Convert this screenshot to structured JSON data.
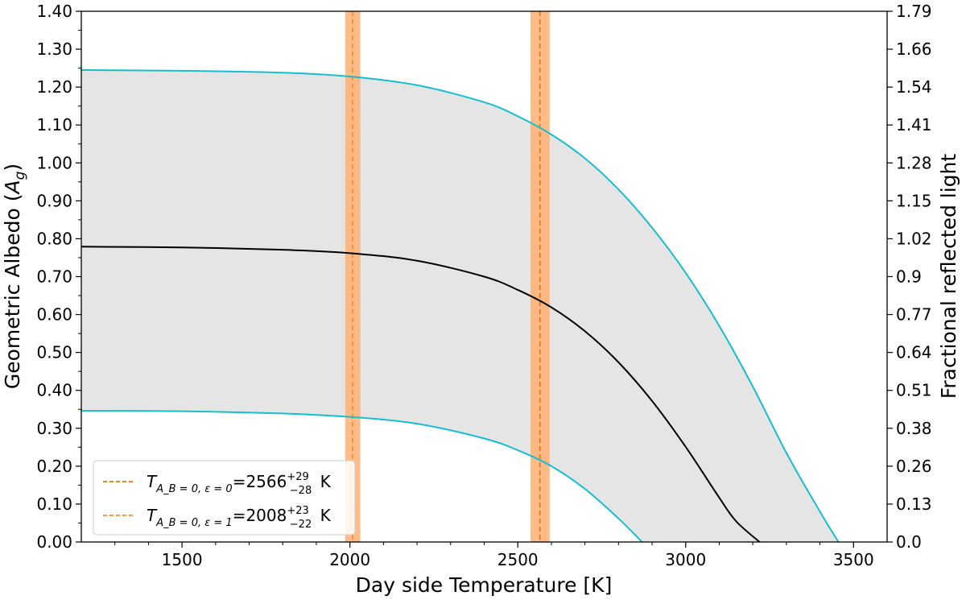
{
  "chart_data": {
    "type": "line",
    "xlabel": "Day side Temperature [K]",
    "ylabel_left": "Geometric Albedo (A_g)",
    "ylabel_right": "Fractional reflected light",
    "xlim": [
      1200,
      3600
    ],
    "ylim": [
      0,
      1.4
    ],
    "x_ticks": [
      1500,
      2000,
      2500,
      3000,
      3500
    ],
    "y_ticks_left": [
      "0.00",
      "0.10",
      "0.20",
      "0.30",
      "0.40",
      "0.50",
      "0.60",
      "0.70",
      "0.80",
      "0.90",
      "1.00",
      "1.10",
      "1.20",
      "1.30",
      "1.40"
    ],
    "y_ticks_right": [
      "0.0",
      "0.13",
      "0.26",
      "0.38",
      "0.51",
      "0.64",
      "0.77",
      "0.9",
      "1.02",
      "1.15",
      "1.28",
      "1.41",
      "1.54",
      "1.66",
      "1.79"
    ],
    "grid": false,
    "legend_position": "lower-left",
    "series": [
      {
        "name": "",
        "role": "median",
        "color": "#000000",
        "points": [
          [
            1200,
            0.779
          ],
          [
            1500,
            0.777
          ],
          [
            1800,
            0.771
          ],
          [
            2000,
            0.762
          ],
          [
            2200,
            0.742
          ],
          [
            2400,
            0.7
          ],
          [
            2500,
            0.665
          ],
          [
            2600,
            0.619
          ],
          [
            2700,
            0.556
          ],
          [
            2800,
            0.474
          ],
          [
            2900,
            0.372
          ],
          [
            3000,
            0.251
          ],
          [
            3100,
            0.117
          ],
          [
            3150,
            0.055
          ],
          [
            3220,
            0.0
          ]
        ]
      },
      {
        "name": "",
        "role": "upper-bound",
        "color": "#17becf",
        "points": [
          [
            1200,
            1.245
          ],
          [
            1500,
            1.243
          ],
          [
            1800,
            1.238
          ],
          [
            2000,
            1.228
          ],
          [
            2200,
            1.205
          ],
          [
            2400,
            1.16
          ],
          [
            2500,
            1.123
          ],
          [
            2600,
            1.075
          ],
          [
            2700,
            1.012
          ],
          [
            2800,
            0.93
          ],
          [
            2900,
            0.829
          ],
          [
            3000,
            0.71
          ],
          [
            3100,
            0.57
          ],
          [
            3200,
            0.41
          ],
          [
            3300,
            0.235
          ],
          [
            3400,
            0.08
          ],
          [
            3455,
            0.0
          ]
        ]
      },
      {
        "name": "",
        "role": "lower-bound",
        "color": "#17becf",
        "points": [
          [
            1200,
            0.346
          ],
          [
            1500,
            0.345
          ],
          [
            1800,
            0.339
          ],
          [
            2000,
            0.33
          ],
          [
            2200,
            0.312
          ],
          [
            2400,
            0.273
          ],
          [
            2500,
            0.242
          ],
          [
            2600,
            0.2
          ],
          [
            2700,
            0.14
          ],
          [
            2800,
            0.062
          ],
          [
            2870,
            0.0
          ]
        ]
      }
    ],
    "shaded_band": {
      "between": [
        "upper-bound",
        "lower-bound"
      ],
      "color": "#e5e5e5"
    },
    "vertical_markers": [
      {
        "label_value": "2566",
        "label_plus": "+29",
        "label_minus": "−28",
        "eps": "0",
        "x": 2566,
        "x_low": 2538,
        "x_high": 2595,
        "line_color": "#e8731a",
        "band_color": "#ffb072"
      },
      {
        "label_value": "2008",
        "label_plus": "+23",
        "label_minus": "−22",
        "eps": "1",
        "x": 2008,
        "x_low": 1986,
        "x_high": 2031,
        "line_color": "#f28d2e",
        "band_color": "#ffb072"
      }
    ],
    "legend": {
      "entries": [
        {
          "symbol": "T",
          "sub": "A_B = 0, ε = 0",
          "text": "=2566",
          "sup": "+29",
          "sublow": "−28",
          "unit": " K",
          "color": "#e8731a"
        },
        {
          "symbol": "T",
          "sub": "A_B = 0, ε = 1",
          "text": "=2008",
          "sup": "+23",
          "sublow": "−22",
          "unit": " K",
          "color": "#f28d2e"
        }
      ]
    }
  }
}
